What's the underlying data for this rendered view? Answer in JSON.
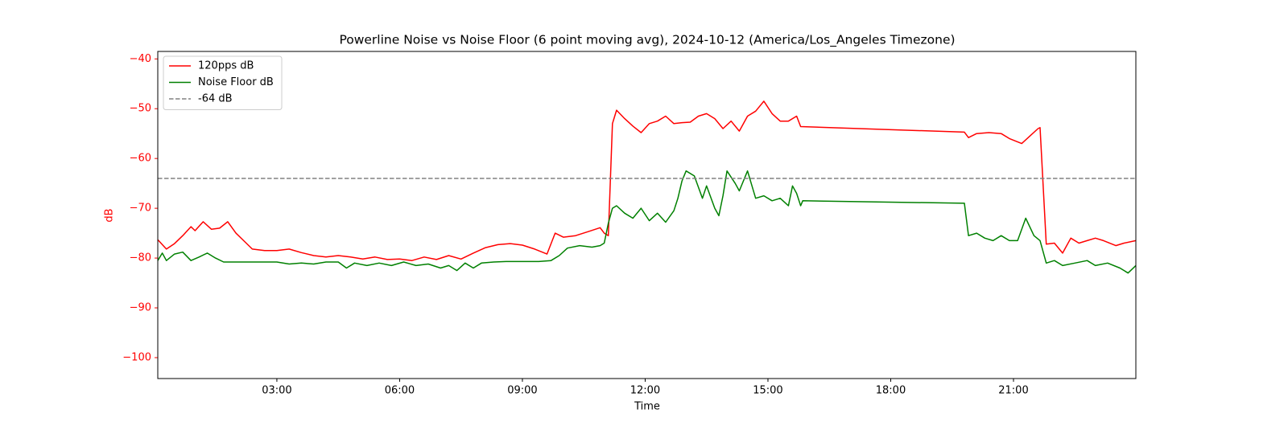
{
  "chart_data": {
    "type": "line",
    "title": "Powerline Noise vs Noise Floor (6 point moving avg), 2024-10-12 (America/Los_Angeles Timezone)",
    "x_label": "Time",
    "y_label": "dB",
    "xlim": [
      0.09,
      23.99
    ],
    "ylim": [
      -104.2,
      -38.5
    ],
    "xticks": [
      {
        "value": 3,
        "label": "03:00"
      },
      {
        "value": 6,
        "label": "06:00"
      },
      {
        "value": 9,
        "label": "09:00"
      },
      {
        "value": 12,
        "label": "12:00"
      },
      {
        "value": 15,
        "label": "15:00"
      },
      {
        "value": 18,
        "label": "18:00"
      },
      {
        "value": 21,
        "label": "21:00"
      }
    ],
    "yticks": [
      {
        "value": -40,
        "label": "−40"
      },
      {
        "value": -50,
        "label": "−50"
      },
      {
        "value": -60,
        "label": "−60"
      },
      {
        "value": -70,
        "label": "−70"
      },
      {
        "value": -80,
        "label": "−80"
      },
      {
        "value": -90,
        "label": "−90"
      },
      {
        "value": -100,
        "label": "−100"
      }
    ],
    "legend": "upper left",
    "series": [
      {
        "name": "120pps dB",
        "color": "#ff0000",
        "x": [
          0.09,
          0.3,
          0.5,
          0.7,
          0.9,
          1.0,
          1.2,
          1.4,
          1.6,
          1.8,
          2.0,
          2.2,
          2.4,
          2.7,
          3.0,
          3.3,
          3.6,
          3.9,
          4.2,
          4.5,
          4.8,
          5.1,
          5.4,
          5.7,
          6.0,
          6.3,
          6.6,
          6.9,
          7.2,
          7.5,
          7.8,
          8.1,
          8.4,
          8.7,
          9.0,
          9.3,
          9.6,
          9.8,
          10.0,
          10.3,
          10.6,
          10.9,
          11.0,
          11.1,
          11.2,
          11.3,
          11.5,
          11.7,
          11.9,
          12.1,
          12.3,
          12.5,
          12.7,
          12.9,
          13.1,
          13.3,
          13.5,
          13.7,
          13.9,
          14.1,
          14.3,
          14.5,
          14.7,
          14.9,
          15.1,
          15.3,
          15.5,
          15.7,
          15.8,
          19.8,
          19.9,
          20.1,
          20.4,
          20.7,
          20.9,
          21.2,
          21.4,
          21.6,
          21.65,
          21.8,
          22.0,
          22.2,
          22.4,
          22.6,
          22.8,
          23.0,
          23.2,
          23.5,
          23.7,
          23.99
        ],
        "values": [
          -76.3,
          -78.2,
          -77.1,
          -75.5,
          -73.7,
          -74.5,
          -72.7,
          -74.2,
          -74,
          -72.7,
          -75,
          -76.6,
          -78.2,
          -78.5,
          -78.5,
          -78.2,
          -78.9,
          -79.5,
          -79.8,
          -79.5,
          -79.8,
          -80.2,
          -79.8,
          -80.3,
          -80.2,
          -80.5,
          -79.8,
          -80.3,
          -79.5,
          -80.2,
          -79,
          -77.9,
          -77.3,
          -77.1,
          -77.4,
          -78.2,
          -79.2,
          -75,
          -75.8,
          -75.5,
          -74.7,
          -73.9,
          -75,
          -75.5,
          -53,
          -50.3,
          -52,
          -53.5,
          -54.8,
          -53,
          -52.5,
          -51.5,
          -53,
          -52.8,
          -52.7,
          -51.5,
          -51,
          -52,
          -54,
          -52.5,
          -54.5,
          -51.5,
          -50.5,
          -48.5,
          -51,
          -52.5,
          -52.5,
          -51.5,
          -53.6,
          -54.7,
          -55.8,
          -55,
          -54.8,
          -55,
          -56,
          -57,
          -55.5,
          -54,
          -53.8,
          -77.2,
          -77,
          -79,
          -76,
          -77,
          -76.5,
          -76,
          -76.5,
          -77.5,
          -77,
          -76.5
        ]
      },
      {
        "name": "Noise Floor dB",
        "color": "#008000",
        "x": [
          0.09,
          0.2,
          0.3,
          0.5,
          0.7,
          0.9,
          1.1,
          1.3,
          1.5,
          1.7,
          2.0,
          2.5,
          3.0,
          3.3,
          3.6,
          3.9,
          4.2,
          4.5,
          4.7,
          4.9,
          5.2,
          5.5,
          5.8,
          6.1,
          6.4,
          6.7,
          7.0,
          7.2,
          7.4,
          7.6,
          7.8,
          8.0,
          8.3,
          8.6,
          9.0,
          9.4,
          9.7,
          9.9,
          10.1,
          10.4,
          10.7,
          10.9,
          11.0,
          11.1,
          11.2,
          11.3,
          11.5,
          11.7,
          11.9,
          12.1,
          12.3,
          12.5,
          12.7,
          12.8,
          12.9,
          13.0,
          13.2,
          13.4,
          13.5,
          13.7,
          13.8,
          13.9,
          14.0,
          14.2,
          14.3,
          14.5,
          14.7,
          14.9,
          15.1,
          15.3,
          15.5,
          15.6,
          15.7,
          15.8,
          15.85,
          19.8,
          19.9,
          20.1,
          20.3,
          20.5,
          20.7,
          20.9,
          21.1,
          21.3,
          21.5,
          21.65,
          21.8,
          22.0,
          22.2,
          22.5,
          22.8,
          23.0,
          23.3,
          23.6,
          23.8,
          23.99
        ],
        "values": [
          -80.5,
          -79,
          -80.5,
          -79.2,
          -78.8,
          -80.5,
          -79.8,
          -79,
          -80,
          -80.8,
          -80.8,
          -80.8,
          -80.8,
          -81.2,
          -81,
          -81.2,
          -80.8,
          -80.8,
          -82,
          -81,
          -81.5,
          -81,
          -81.5,
          -80.8,
          -81.5,
          -81.2,
          -82,
          -81.5,
          -82.5,
          -81,
          -82,
          -81,
          -80.8,
          -80.7,
          -80.7,
          -80.7,
          -80.5,
          -79.5,
          -78,
          -77.5,
          -77.8,
          -77.5,
          -77,
          -73,
          -70,
          -69.5,
          -71,
          -72,
          -70,
          -72.5,
          -71,
          -72.8,
          -70.5,
          -68,
          -64.5,
          -62.5,
          -63.5,
          -68,
          -65.5,
          -70,
          -71.5,
          -67.5,
          -62.5,
          -65,
          -66.5,
          -62.5,
          -68,
          -67.5,
          -68.5,
          -68,
          -69.5,
          -65.5,
          -67,
          -69.5,
          -68.5,
          -69,
          -75.5,
          -75,
          -76,
          -76.5,
          -75.5,
          -76.5,
          -76.5,
          -72,
          -75.5,
          -76.5,
          -81,
          -80.5,
          -81.5,
          -81,
          -80.5,
          -81.5,
          -81,
          -82,
          -83,
          -81.5
        ]
      }
    ],
    "hline": {
      "value": -64,
      "label": "-64 dB",
      "color": "#808080"
    }
  }
}
